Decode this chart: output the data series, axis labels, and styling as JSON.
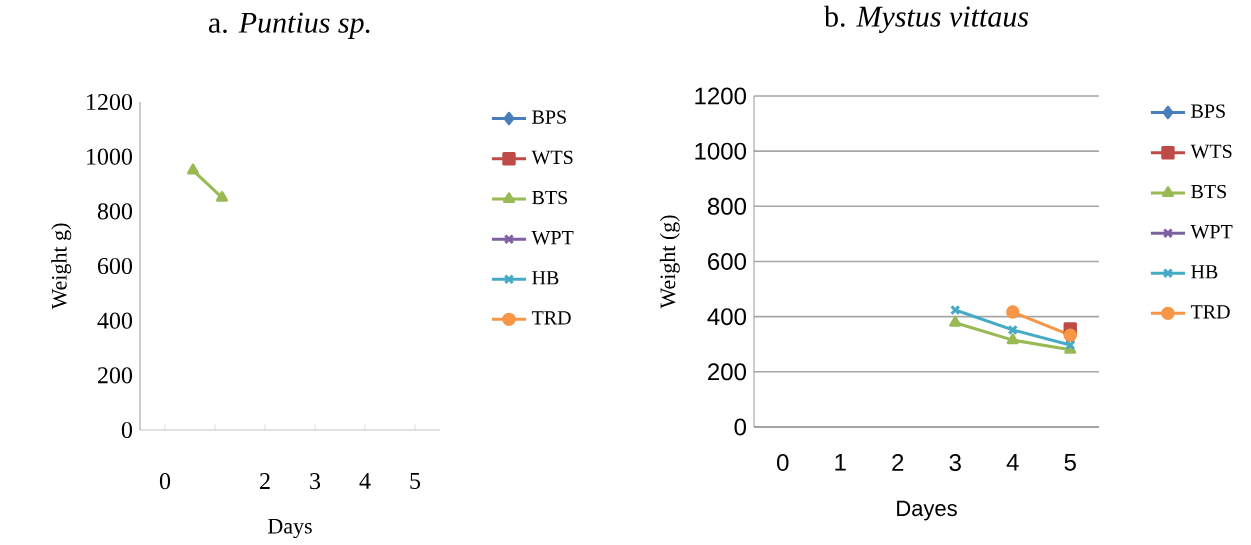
{
  "chart_data": [
    {
      "type": "line",
      "title": "a. *Puntius sp.*",
      "xlabel": "Days",
      "ylabel": "Weight  g)",
      "xlim": [
        -0.5,
        5.5
      ],
      "xticks": [
        0,
        {
          "value": 1,
          "label": null
        },
        2,
        3,
        4,
        5
      ],
      "ylim": [
        0,
        1200
      ],
      "yticks": [
        0,
        200,
        400,
        600,
        800,
        1000,
        1200
      ],
      "grid": false,
      "legend": "right",
      "line_style": "solid",
      "series": [
        {
          "name": "BPS",
          "color": "#4a7ebb",
          "marker": "diamond",
          "values": [
            null,
            null,
            null,
            null,
            null,
            null
          ]
        },
        {
          "name": "WTS",
          "color": "#be4b48",
          "marker": "square",
          "values": [
            null,
            null,
            null,
            null,
            null,
            null
          ]
        },
        {
          "name": "BTS",
          "color": "#98b954",
          "marker": "triangle",
          "x": [
            0.56,
            1.14
          ],
          "values": [
            950,
            850
          ]
        },
        {
          "name": "WPT",
          "color": "#7d60a0",
          "marker": "cross",
          "values": [
            null,
            null,
            null,
            null,
            null,
            null
          ]
        },
        {
          "name": "HB",
          "color": "#46aac5",
          "marker": "cross",
          "values": [
            null,
            null,
            null,
            null,
            null,
            null
          ]
        },
        {
          "name": "TRD",
          "color": "#f79646",
          "marker": "circle",
          "values": [
            null,
            null,
            null,
            null,
            null,
            null
          ]
        }
      ]
    },
    {
      "type": "line",
      "title": "b. *Mystus vittaus*",
      "xlabel": "Dayes",
      "ylabel": "Weight (g)",
      "categories": [
        "0",
        "1",
        "2",
        "3",
        "4",
        "5"
      ],
      "ylim": [
        0,
        1200
      ],
      "yticks": [
        0,
        200,
        400,
        600,
        800,
        1000,
        1200
      ],
      "grid": "y",
      "legend": "right",
      "line_style": "solid",
      "series": [
        {
          "name": "BPS",
          "color": "#4a7ebb",
          "marker": "diamond",
          "values": [
            null,
            null,
            null,
            null,
            null,
            null
          ]
        },
        {
          "name": "WTS",
          "color": "#be4b48",
          "marker": "square",
          "values": [
            null,
            null,
            null,
            null,
            null,
            355
          ]
        },
        {
          "name": "BTS",
          "color": "#98b954",
          "marker": "triangle",
          "values": [
            null,
            null,
            null,
            378,
            315,
            280
          ]
        },
        {
          "name": "WPT",
          "color": "#7d60a0",
          "marker": "cross",
          "values": [
            null,
            null,
            null,
            null,
            null,
            320
          ]
        },
        {
          "name": "HB",
          "color": "#46aac5",
          "marker": "cross",
          "values": [
            null,
            null,
            null,
            424,
            352,
            297
          ]
        },
        {
          "name": "TRD",
          "color": "#f79646",
          "marker": "circle",
          "values": [
            null,
            null,
            null,
            null,
            417,
            333
          ]
        }
      ]
    }
  ]
}
